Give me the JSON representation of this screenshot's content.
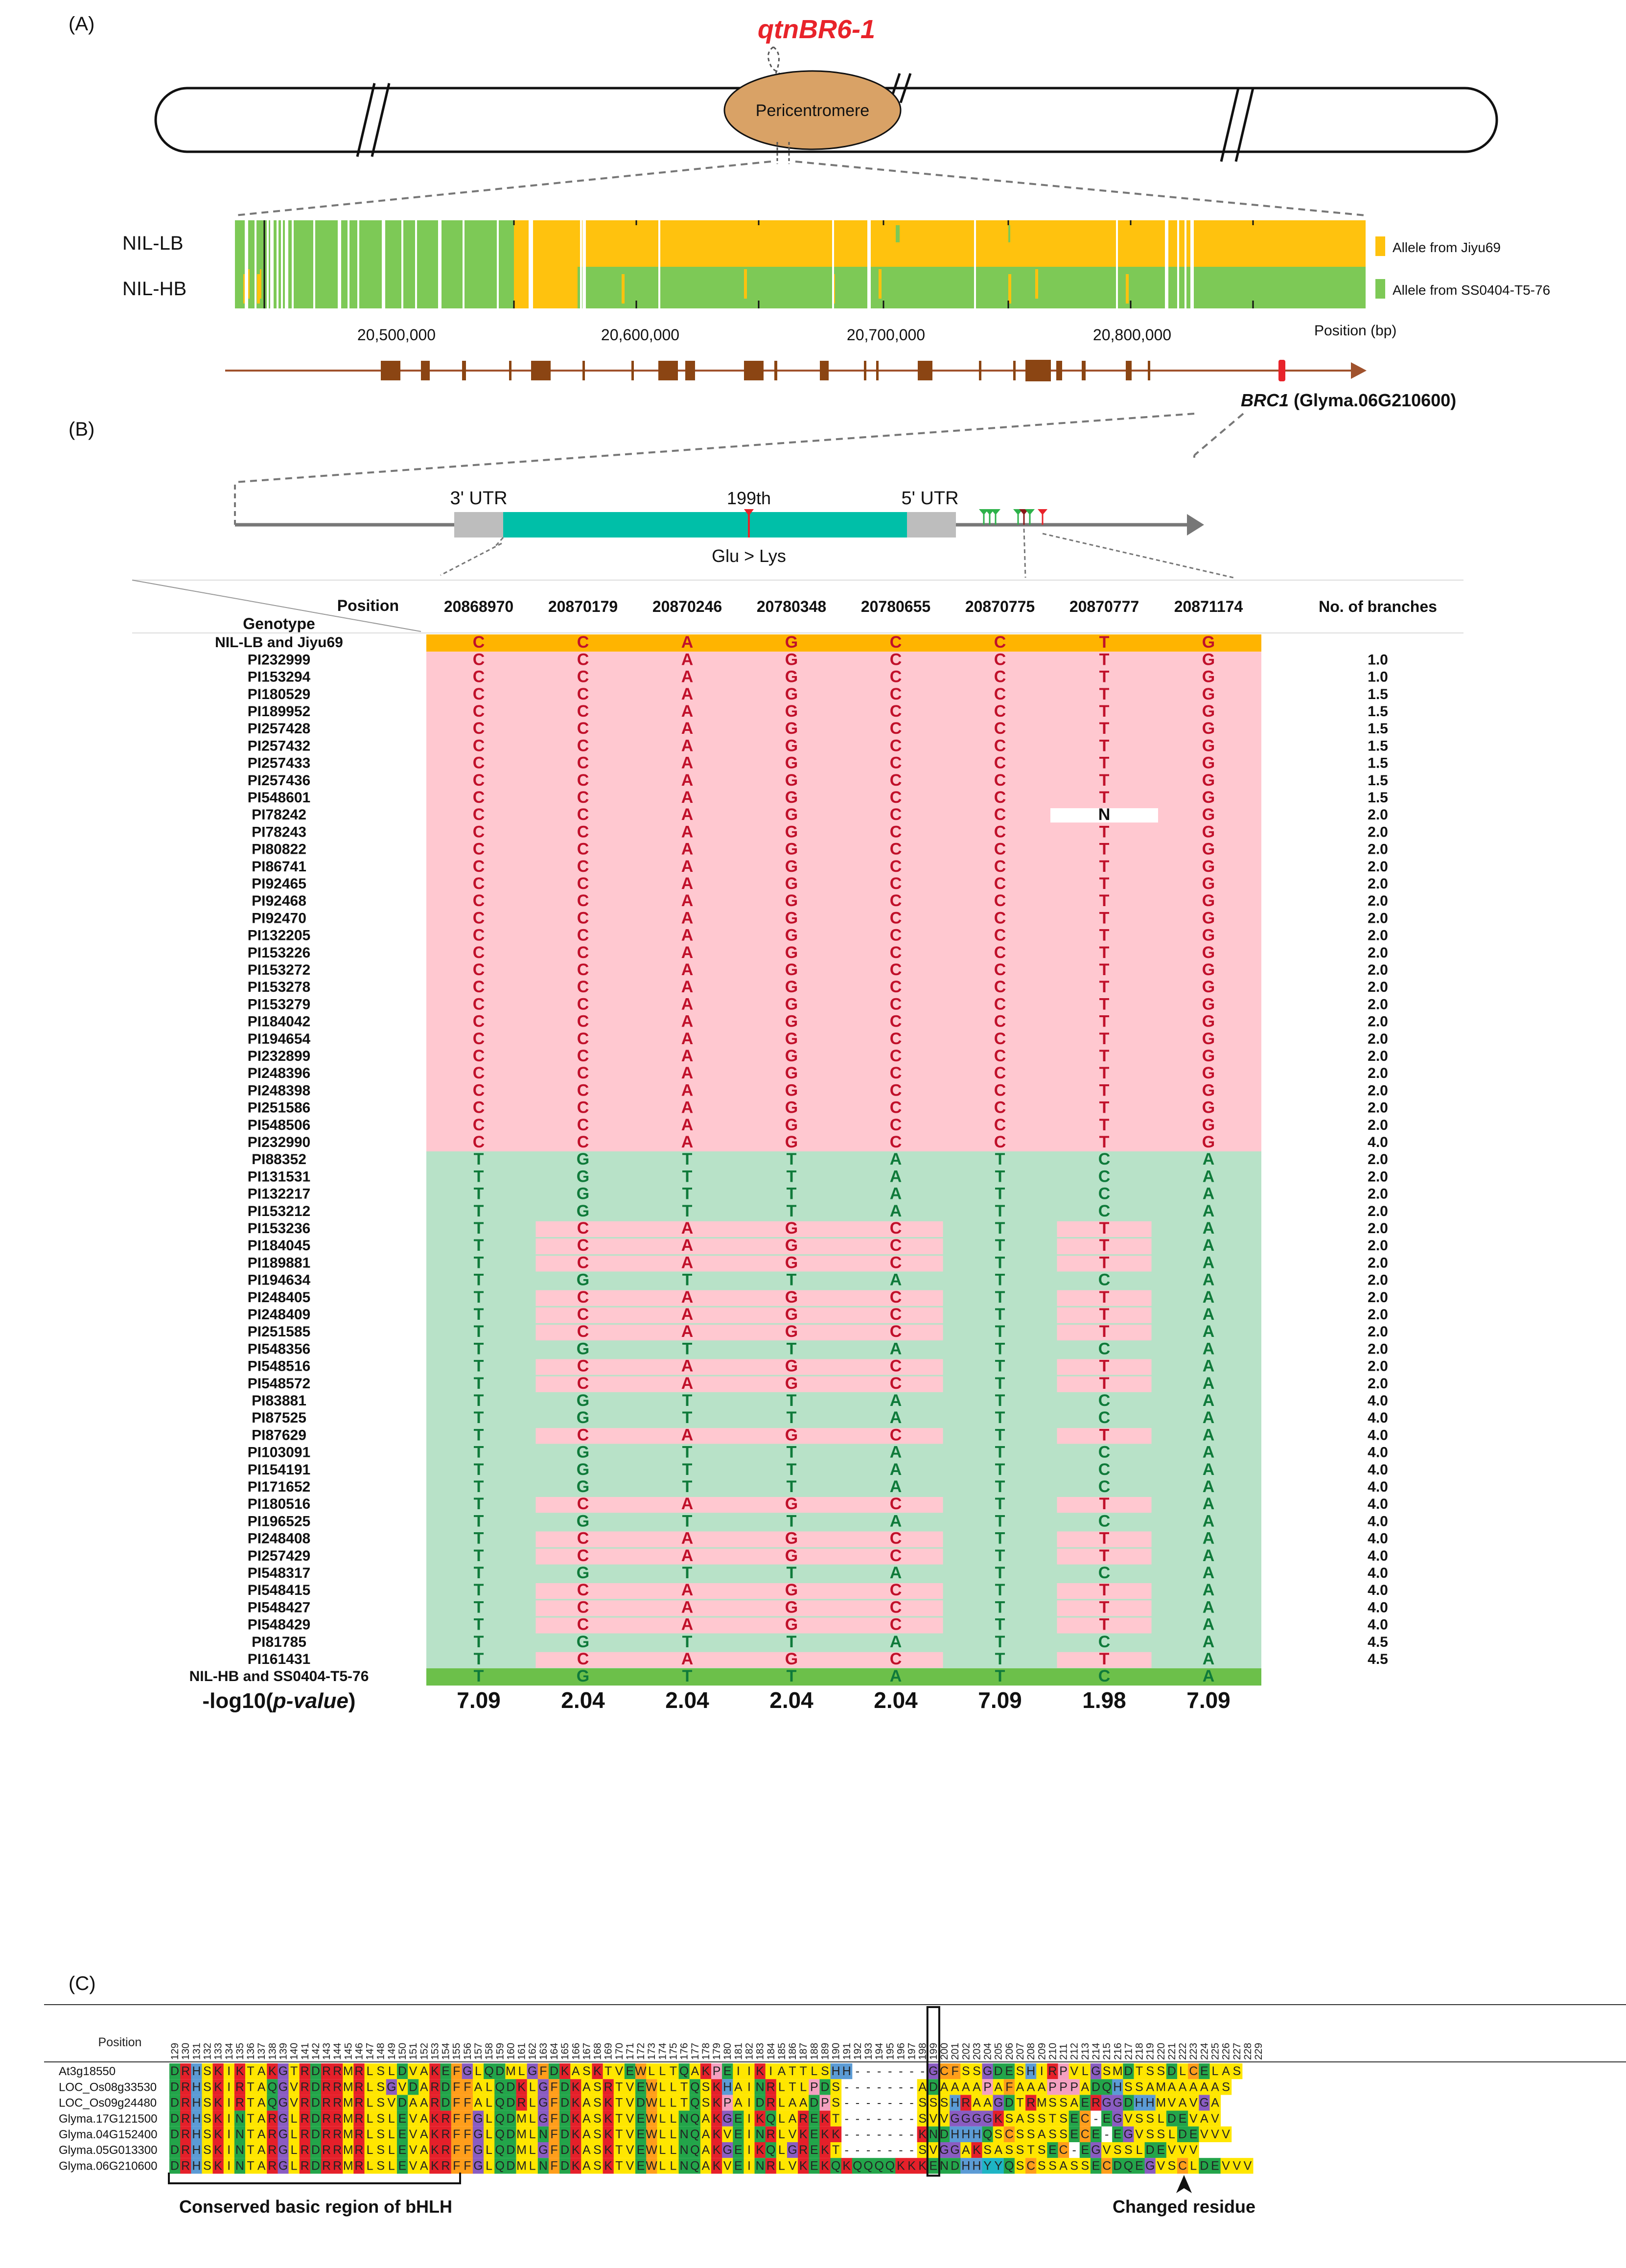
{
  "panels": {
    "a": "(A)",
    "b": "(B)",
    "c": "(C)"
  },
  "panel_a": {
    "qtn_label": "qtnBR6-1",
    "centromere_label": "Pericentromere",
    "row_labels": [
      "NIL-LB",
      "NIL-HB"
    ],
    "legend": [
      "Allele from Jiyu69",
      "Allele from SS0404-T5-76"
    ],
    "ticks": [
      "20,500,000",
      "20,600,000",
      "20,700,000",
      "20,800,000"
    ],
    "axis_label": "Position (bp)",
    "gene_italic": "BRC1",
    "gene_id": " (Glyma.06G210600)",
    "colors": {
      "jiyu": "#FFC20E",
      "ss": "#7DC956",
      "centromere": "#D9A266",
      "exon": "#8B4513",
      "qtn": "#E8232A"
    }
  },
  "panel_b": {
    "utr3": "3' UTR",
    "utr5": "5' UTR",
    "site": "199th",
    "mutation": "Glu > Lys",
    "corner_position": "Position",
    "corner_genotype": "Genotype",
    "branches_header": "No. of branches",
    "positions": [
      "20868970",
      "20870179",
      "20870246",
      "20780348",
      "20780655",
      "20870775",
      "20870777",
      "20871174"
    ],
    "lb_label": "NIL-LB and Jiyu69",
    "lb_alleles": "CCAGCCTG",
    "hb_label": "NIL-HB and SS0404-T5-76",
    "hb_alleles": "TGTTATCA",
    "pvalue_label": "-log10(",
    "pvalue_italic": "p-value",
    "pvalue_close": ")",
    "pvalues": [
      "7.09",
      "2.04",
      "2.04",
      "2.04",
      "2.04",
      "7.09",
      "1.98",
      "7.09"
    ],
    "accessions_lb": [
      {
        "name": "PI232999",
        "alleles": "CCAGCCTG",
        "branches": "1.0"
      },
      {
        "name": "PI153294",
        "alleles": "CCAGCCTG",
        "branches": "1.0"
      },
      {
        "name": "PI180529",
        "alleles": "CCAGCCTG",
        "branches": "1.5"
      },
      {
        "name": "PI189952",
        "alleles": "CCAGCCTG",
        "branches": "1.5"
      },
      {
        "name": "PI257428",
        "alleles": "CCAGCCTG",
        "branches": "1.5"
      },
      {
        "name": "PI257432",
        "alleles": "CCAGCCTG",
        "branches": "1.5"
      },
      {
        "name": "PI257433",
        "alleles": "CCAGCCTG",
        "branches": "1.5"
      },
      {
        "name": "PI257436",
        "alleles": "CCAGCCTG",
        "branches": "1.5"
      },
      {
        "name": "PI548601",
        "alleles": "CCAGCCTG",
        "branches": "1.5"
      },
      {
        "name": "PI78242",
        "alleles": "CCAGCCNG",
        "branches": "2.0"
      },
      {
        "name": "PI78243",
        "alleles": "CCAGCCTG",
        "branches": "2.0"
      },
      {
        "name": "PI80822",
        "alleles": "CCAGCCTG",
        "branches": "2.0"
      },
      {
        "name": "PI86741",
        "alleles": "CCAGCCTG",
        "branches": "2.0"
      },
      {
        "name": "PI92465",
        "alleles": "CCAGCCTG",
        "branches": "2.0"
      },
      {
        "name": "PI92468",
        "alleles": "CCAGCCTG",
        "branches": "2.0"
      },
      {
        "name": "PI92470",
        "alleles": "CCAGCCTG",
        "branches": "2.0"
      },
      {
        "name": "PI132205",
        "alleles": "CCAGCCTG",
        "branches": "2.0"
      },
      {
        "name": "PI153226",
        "alleles": "CCAGCCTG",
        "branches": "2.0"
      },
      {
        "name": "PI153272",
        "alleles": "CCAGCCTG",
        "branches": "2.0"
      },
      {
        "name": "PI153278",
        "alleles": "CCAGCCTG",
        "branches": "2.0"
      },
      {
        "name": "PI153279",
        "alleles": "CCAGCCTG",
        "branches": "2.0"
      },
      {
        "name": "PI184042",
        "alleles": "CCAGCCTG",
        "branches": "2.0"
      },
      {
        "name": "PI194654",
        "alleles": "CCAGCCTG",
        "branches": "2.0"
      },
      {
        "name": "PI232899",
        "alleles": "CCAGCCTG",
        "branches": "2.0"
      },
      {
        "name": "PI248396",
        "alleles": "CCAGCCTG",
        "branches": "2.0"
      },
      {
        "name": "PI248398",
        "alleles": "CCAGCCTG",
        "branches": "2.0"
      },
      {
        "name": "PI251586",
        "alleles": "CCAGCCTG",
        "branches": "2.0"
      },
      {
        "name": "PI548506",
        "alleles": "CCAGCCTG",
        "branches": "2.0"
      },
      {
        "name": "PI232990",
        "alleles": "CCAGCCTG",
        "branches": "4.0"
      }
    ],
    "accessions_hb": [
      {
        "name": "PI88352",
        "alleles": "TGTTATCA",
        "branches": "2.0"
      },
      {
        "name": "PI131531",
        "alleles": "TGTTATCA",
        "branches": "2.0"
      },
      {
        "name": "PI132217",
        "alleles": "TGTTATCA",
        "branches": "2.0"
      },
      {
        "name": "PI153212",
        "alleles": "TGTTATCA",
        "branches": "2.0"
      },
      {
        "name": "PI153236",
        "alleles": "TCAGCTTA",
        "branches": "2.0"
      },
      {
        "name": "PI184045",
        "alleles": "TCAGCTTA",
        "branches": "2.0"
      },
      {
        "name": "PI189881",
        "alleles": "TCAGCTTA",
        "branches": "2.0"
      },
      {
        "name": "PI194634",
        "alleles": "TGTTATCA",
        "branches": "2.0"
      },
      {
        "name": "PI248405",
        "alleles": "TCAGCTTA",
        "branches": "2.0"
      },
      {
        "name": "PI248409",
        "alleles": "TCAGCTTA",
        "branches": "2.0"
      },
      {
        "name": "PI251585",
        "alleles": "TCAGCTTA",
        "branches": "2.0"
      },
      {
        "name": "PI548356",
        "alleles": "TGTTATCA",
        "branches": "2.0"
      },
      {
        "name": "PI548516",
        "alleles": "TCAGCTTA",
        "branches": "2.0"
      },
      {
        "name": "PI548572",
        "alleles": "TCAGCTTA",
        "branches": "2.0"
      },
      {
        "name": "PI83881",
        "alleles": "TGTTATCA",
        "branches": "4.0"
      },
      {
        "name": "PI87525",
        "alleles": "TGTTATCA",
        "branches": "4.0"
      },
      {
        "name": "PI87629",
        "alleles": "TCAGCTTA",
        "branches": "4.0"
      },
      {
        "name": "PI103091",
        "alleles": "TGTTATCA",
        "branches": "4.0"
      },
      {
        "name": "PI154191",
        "alleles": "TGTTATCA",
        "branches": "4.0"
      },
      {
        "name": "PI171652",
        "alleles": "TGTTATCA",
        "branches": "4.0"
      },
      {
        "name": "PI180516",
        "alleles": "TCAGCTTA",
        "branches": "4.0"
      },
      {
        "name": "PI196525",
        "alleles": "TGTTATCA",
        "branches": "4.0"
      },
      {
        "name": "PI248408",
        "alleles": "TCAGCTTA",
        "branches": "4.0"
      },
      {
        "name": "PI257429",
        "alleles": "TCAGCTTA",
        "branches": "4.0"
      },
      {
        "name": "PI548317",
        "alleles": "TGTTATCA",
        "branches": "4.0"
      },
      {
        "name": "PI548415",
        "alleles": "TCAGCTTA",
        "branches": "4.0"
      },
      {
        "name": "PI548427",
        "alleles": "TCAGCTTA",
        "branches": "4.0"
      },
      {
        "name": "PI548429",
        "alleles": "TCAGCTTA",
        "branches": "4.0"
      },
      {
        "name": "PI81785",
        "alleles": "TGTTATCA",
        "branches": "4.5"
      },
      {
        "name": "PI161431",
        "alleles": "TCAGCTTA",
        "branches": "4.5"
      }
    ],
    "colors": {
      "lb_row": "#FFB400",
      "hb_row": "#6CC04A",
      "pink": "#FFC8D0",
      "green_bg": "#B8E2C8",
      "red_text": "#C0102A",
      "green_text": "#0F7A3A"
    }
  },
  "panel_c": {
    "position_label": "Position",
    "start": 129,
    "end": 229,
    "highlight": 199,
    "sequences": [
      {
        "name": "At3g18550",
        "seq": "DRHSKIKTAKGTRDRRMRLSLDVAKEFGLQDMLGFDKASKTVEWLLTQAKPEIIKIATTLSHH-------GCFSSGDESHIRPVLGSMDTSSDLCELAS"
      },
      {
        "name": "LOC_Os08g33530",
        "seq": "DRHSKIRTAQGVRDRRMRLSGVDARDFFALQDKLGFDKASRTVEWLLTQSKHAINRLTLPDS-------ADAAAAPAFAAAPPPADQHSSAMAAAAAS"
      },
      {
        "name": "LOC_Os09g24480",
        "seq": "DRHSKIRTAQGVRDRRMRLSVDAARDFFALQDRLGFDKASKTVDWLLTQSKPAIDRLAADPS-------SSSHRAAGDTRMSSAERGGDHHMVAVGA"
      },
      {
        "name": "Glyma.17G121500",
        "seq": "DRHSKINTARGLRDRRMRLSLEVAKRFFGLQDMLGFDKASKTVEWLLNQAKGEIKQLAREKT-------SVVGGGGKSASSTSEC-EGVSSLDEVAV"
      },
      {
        "name": "Glyma.04G152400",
        "seq": "DRHSKINTARGLRDRRMRLSLEVAKRFFGLQDMLNFDKASKTVEWLLNQAKVEINRLVKEKK-------KNDHHHQSCSSASSECE-EGVSSLDEVVV"
      },
      {
        "name": "Glyma.05G013300",
        "seq": "DRHSKINTARGLRDRRMRLSLEVAKRFFGLQDMLGFDKASKTVEWLLNQAKGEIKQLGREKT-------SVGGAKSASSTSEC-EGVSSLDEVVV"
      },
      {
        "name": "Glyma.06G210600",
        "seq": "DRHSKINTARGLRDRRMRLSLEVAKRFFGLQDMLNFDKASKTVEWLLNQAKVEINRLVKEKQKQQQQKKKENDHHYYQSCSSASSECDQEGVSCLDEVVV"
      }
    ],
    "bracket_label": "Conserved basic region of bHLH",
    "changed_label": "Changed residue",
    "aa_colors": {
      "R": "#E5202A",
      "K": "#E5202A",
      "H": "#5B9BD5",
      "D": "#23A54A",
      "E": "#23A54A",
      "S": "#FFE600",
      "T": "#FFE600",
      "N": "#23A54A",
      "Q": "#23A54A",
      "A": "#FFE600",
      "V": "#FFE600",
      "L": "#FFE600",
      "I": "#FFE600",
      "M": "#FFE600",
      "F": "#FF9E1B",
      "W": "#FF9E1B",
      "Y": "#1EB5C5",
      "G": "#8A5CC2",
      "P": "#F5A0C0",
      "C": "#FF9E1B"
    }
  }
}
